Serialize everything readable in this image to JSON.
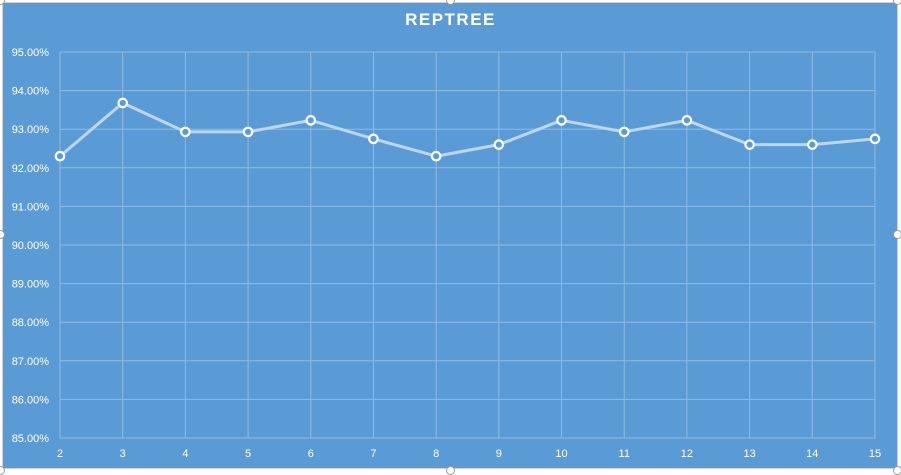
{
  "colors": {
    "background": "#5b9bd5",
    "gridline": "#8fbbe3",
    "line": "#bcd6ee",
    "marker_fill": "#5b9bd5",
    "marker_stroke": "#ffffff",
    "text": "#ffffff"
  },
  "chart_data": {
    "type": "line",
    "title": "REPTREE",
    "xlabel": "",
    "ylabel": "",
    "x": [
      2,
      3,
      4,
      5,
      6,
      7,
      8,
      9,
      10,
      11,
      12,
      13,
      14,
      15
    ],
    "x_tick_labels": [
      "2",
      "3",
      "4",
      "5",
      "6",
      "7",
      "8",
      "9",
      "10",
      "11",
      "12",
      "13",
      "14",
      "15"
    ],
    "series": [
      {
        "values": [
          92.3,
          93.68,
          92.93,
          92.93,
          93.23,
          92.75,
          92.3,
          92.6,
          93.23,
          92.93,
          93.23,
          92.6,
          92.6,
          92.75
        ]
      }
    ],
    "ylim": [
      85,
      95
    ],
    "y_ticks": [
      85,
      86,
      87,
      88,
      89,
      90,
      91,
      92,
      93,
      94,
      95
    ],
    "y_tick_labels": [
      "85.00%",
      "86.00%",
      "87.00%",
      "88.00%",
      "89.00%",
      "90.00%",
      "91.00%",
      "92.00%",
      "93.00%",
      "94.00%",
      "95.00%"
    ],
    "grid": true,
    "legend": "none",
    "markers": "hollow-circle"
  }
}
